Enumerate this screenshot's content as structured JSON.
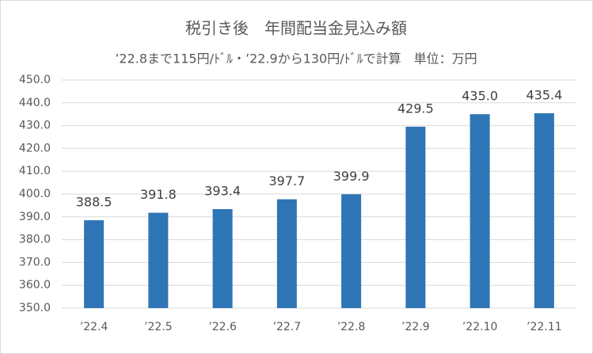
{
  "chart_data": {
    "type": "bar",
    "title": "税引き後　年間配当金見込み額",
    "subtitle": "’22.8まで115円/ﾄﾞﾙ・’22.9から130円/ﾄﾞﾙで計算　単位：万円",
    "categories": [
      "’22.4",
      "’22.5",
      "’22.6",
      "’22.7",
      "’22.8",
      "’22.9",
      "’22.10",
      "’22.11"
    ],
    "values": [
      388.5,
      391.8,
      393.4,
      397.7,
      399.9,
      429.5,
      435.0,
      435.4
    ],
    "value_labels": [
      "388.5",
      "391.8",
      "393.4",
      "397.7",
      "399.9",
      "429.5",
      "435.0",
      "435.4"
    ],
    "color": "#2e75b6",
    "ylim": [
      350,
      450
    ],
    "yticks": [
      {
        "value": 350,
        "label": "350.0"
      },
      {
        "value": 360,
        "label": "360.0"
      },
      {
        "value": 370,
        "label": "370.0"
      },
      {
        "value": 380,
        "label": "380.0"
      },
      {
        "value": 390,
        "label": "390.0"
      },
      {
        "value": 400,
        "label": "400.0"
      },
      {
        "value": 410,
        "label": "410.0"
      },
      {
        "value": 420,
        "label": "420.0"
      },
      {
        "value": 430,
        "label": "430.0"
      },
      {
        "value": 440,
        "label": "440.0"
      },
      {
        "value": 450,
        "label": "450.0"
      }
    ],
    "grid": true
  }
}
